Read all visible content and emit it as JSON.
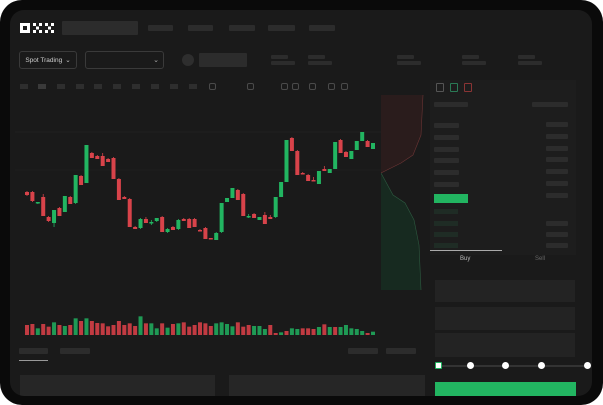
{
  "header": {
    "logo": "OKX",
    "nav_items": [
      "",
      "",
      "",
      "",
      ""
    ]
  },
  "toolbar": {
    "market_selector": "Spot Trading",
    "pair_selector": "",
    "chevron": "⌄",
    "stats": [
      "",
      "",
      "",
      "",
      ""
    ]
  },
  "chart_tools": [
    "candle-interval",
    "indicator",
    "line-tool",
    "draw-tool",
    "screenshot-tool",
    "settings-tool",
    "fullscreen-tool"
  ],
  "order_book": {
    "view_icons": [
      "both-sides",
      "bids-only",
      "asks-only"
    ]
  },
  "trade": {
    "tabs": [
      "Buy",
      "Sell"
    ],
    "active_tab": "Buy",
    "slider_percent": 0,
    "slider_stops": [
      0,
      25,
      50,
      75,
      100
    ]
  },
  "colors": {
    "up": "#22b561",
    "down": "#d8434a",
    "background": "#1a1a1a",
    "accent": "#22b561"
  },
  "chart_data": {
    "type": "candlestick",
    "ohlc": [
      [
        68,
        69,
        64,
        65
      ],
      [
        68,
        69,
        58,
        59
      ],
      [
        57,
        58,
        56,
        58
      ],
      [
        63,
        66,
        44,
        44
      ],
      [
        43,
        44,
        38,
        39
      ],
      [
        37,
        50,
        33,
        50
      ],
      [
        52,
        53,
        44,
        44
      ],
      [
        48,
        64,
        48,
        64
      ],
      [
        63,
        64,
        56,
        56
      ],
      [
        57,
        85,
        56,
        85
      ],
      [
        84,
        85,
        75,
        75
      ],
      [
        77,
        115,
        77,
        115
      ],
      [
        107,
        108,
        102,
        102
      ],
      [
        104,
        105,
        101,
        101
      ],
      [
        104,
        107,
        94,
        94
      ],
      [
        101,
        102,
        98,
        98
      ],
      [
        102,
        103,
        81,
        81
      ],
      [
        81,
        82,
        60,
        60
      ],
      [
        63,
        64,
        61,
        61
      ],
      [
        61,
        62,
        33,
        33
      ],
      [
        33,
        34,
        31,
        31
      ],
      [
        32,
        42,
        31,
        41
      ],
      [
        41,
        43,
        37,
        37
      ],
      [
        37,
        40,
        35,
        38
      ],
      [
        39,
        42,
        38,
        42
      ],
      [
        43,
        44,
        28,
        28
      ],
      [
        28,
        32,
        27,
        31
      ],
      [
        33,
        34,
        30,
        30
      ],
      [
        31,
        41,
        30,
        40
      ],
      [
        41,
        42,
        39,
        39
      ],
      [
        41,
        42,
        32,
        32
      ],
      [
        41,
        42,
        33,
        33
      ],
      [
        30,
        31,
        29,
        29
      ],
      [
        32,
        33,
        21,
        21
      ],
      [
        22,
        22,
        21,
        21
      ],
      [
        20,
        28,
        20,
        27
      ],
      [
        28,
        57,
        27,
        57
      ],
      [
        58,
        62,
        58,
        62
      ],
      [
        62,
        72,
        62,
        72
      ],
      [
        70,
        71,
        60,
        60
      ],
      [
        66,
        67,
        44,
        44
      ],
      [
        43,
        46,
        42,
        44
      ],
      [
        46,
        47,
        42,
        42
      ],
      [
        40,
        43,
        40,
        43
      ],
      [
        45,
        48,
        36,
        36
      ],
      [
        43,
        45,
        41,
        41
      ],
      [
        43,
        63,
        42,
        63
      ],
      [
        63,
        78,
        63,
        78
      ],
      [
        78,
        120,
        78,
        120
      ],
      [
        122,
        123,
        109,
        109
      ],
      [
        109,
        110,
        85,
        85
      ],
      [
        87,
        88,
        86,
        86
      ],
      [
        85,
        86,
        79,
        79
      ],
      [
        80,
        83,
        79,
        79
      ],
      [
        76,
        89,
        76,
        89
      ],
      [
        91,
        94,
        89,
        89
      ],
      [
        87,
        91,
        87,
        91
      ],
      [
        91,
        118,
        91,
        118
      ],
      [
        120,
        121,
        107,
        107
      ],
      [
        108,
        109,
        103,
        103
      ],
      [
        101,
        109,
        101,
        109
      ],
      [
        110,
        119,
        110,
        119
      ],
      [
        119,
        128,
        119,
        128
      ],
      [
        119,
        120,
        113,
        113
      ],
      [
        111,
        117,
        111,
        117
      ]
    ],
    "volume": [
      30,
      33,
      20,
      33,
      25,
      38,
      30,
      27,
      30,
      50,
      42,
      50,
      42,
      36,
      35,
      26,
      30,
      42,
      30,
      35,
      27,
      56,
      35,
      35,
      20,
      35,
      22,
      33,
      35,
      38,
      25,
      30,
      38,
      35,
      27,
      35,
      38,
      33,
      26,
      38,
      25,
      30,
      27,
      27,
      18,
      30,
      6,
      8,
      12,
      20,
      18,
      20,
      20,
      18,
      24,
      32,
      24,
      24,
      24,
      30,
      20,
      18,
      12,
      6,
      10
    ],
    "volume_up": [
      0,
      0,
      1,
      0,
      0,
      1,
      0,
      1,
      0,
      1,
      0,
      1,
      0,
      0,
      0,
      0,
      0,
      0,
      0,
      0,
      0,
      1,
      0,
      1,
      1,
      0,
      1,
      0,
      1,
      0,
      0,
      0,
      0,
      0,
      0,
      1,
      1,
      1,
      1,
      0,
      0,
      0,
      1,
      1,
      1,
      0,
      0,
      1,
      0,
      1,
      1,
      0,
      0,
      0,
      1,
      0,
      1,
      0,
      1,
      1,
      1,
      1,
      1,
      0,
      1
    ],
    "grid": true,
    "axes_labels": false
  }
}
